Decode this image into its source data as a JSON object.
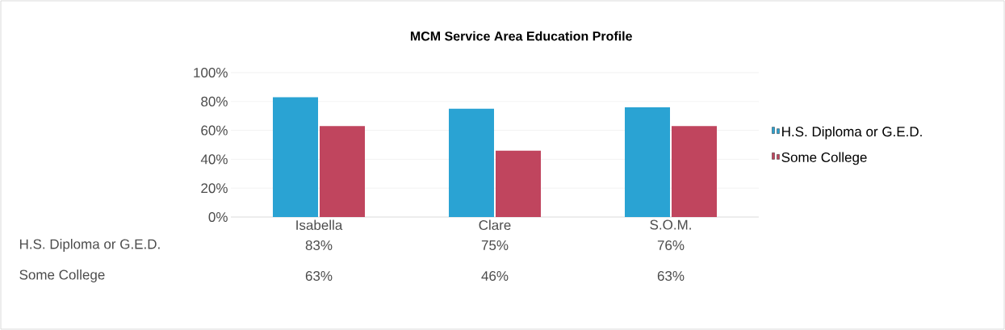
{
  "chart_data": {
    "type": "bar",
    "title": "MCM Service Area Education Profile",
    "categories": [
      "Isabella",
      "Clare",
      "S.O.M."
    ],
    "series": [
      {
        "name": "H.S. Diploma or G.E.D.",
        "color": "#2aa3d3",
        "values": [
          83,
          75,
          76
        ],
        "value_labels": [
          "83%",
          "75%",
          "76%"
        ]
      },
      {
        "name": "Some College",
        "color": "#c0455e",
        "values": [
          63,
          46,
          63
        ],
        "value_labels": [
          "63%",
          "46%",
          "63%"
        ]
      }
    ],
    "ylim": [
      0,
      100
    ],
    "yticks": [
      {
        "value": 0,
        "label": "0%"
      },
      {
        "value": 20,
        "label": "20%"
      },
      {
        "value": 40,
        "label": "40%"
      },
      {
        "value": 60,
        "label": "60%"
      },
      {
        "value": 80,
        "label": "80%"
      },
      {
        "value": 100,
        "label": "100%"
      }
    ],
    "grid": "y",
    "legend": "right"
  }
}
